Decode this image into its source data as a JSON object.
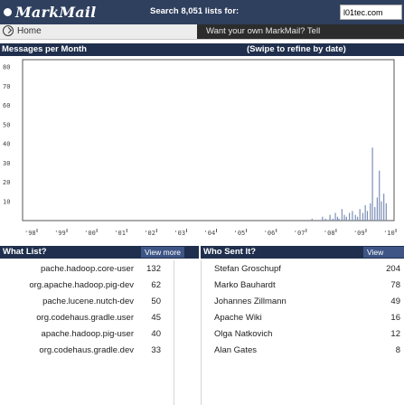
{
  "header": {
    "logo_text": "MarkMail",
    "search_label": "Search 8,051 lists for:",
    "search_value": "l01tec.com"
  },
  "nav": {
    "home_label": "Home",
    "promo_text": "Want your own MarkMail? Tell"
  },
  "messages_section": {
    "title": "Messages per Month",
    "hint": "(Swipe to refine by date)"
  },
  "chart_data": {
    "type": "bar",
    "y_ticks": [
      10,
      20,
      30,
      40,
      50,
      60,
      70,
      80
    ],
    "ylim": [
      0,
      80
    ],
    "x_tick_labels": [
      "'98",
      "'99",
      "'00",
      "'01",
      "'02",
      "'03",
      "'04",
      "'05",
      "'06",
      "'07",
      "'08",
      "'09",
      "'10"
    ],
    "bar_color": "#7b8fb8",
    "x_start": 1998.0,
    "monthly_values": [
      [
        2007.6,
        1
      ],
      [
        2007.95,
        2
      ],
      [
        2008.05,
        1
      ],
      [
        2008.2,
        3
      ],
      [
        2008.3,
        1
      ],
      [
        2008.38,
        4
      ],
      [
        2008.45,
        2
      ],
      [
        2008.5,
        1
      ],
      [
        2008.6,
        6
      ],
      [
        2008.68,
        3
      ],
      [
        2008.75,
        2
      ],
      [
        2008.85,
        4
      ],
      [
        2008.95,
        5
      ],
      [
        2009.05,
        3
      ],
      [
        2009.12,
        2
      ],
      [
        2009.2,
        6
      ],
      [
        2009.3,
        4
      ],
      [
        2009.38,
        8
      ],
      [
        2009.45,
        5
      ],
      [
        2009.55,
        9
      ],
      [
        2009.62,
        38
      ],
      [
        2009.7,
        7
      ],
      [
        2009.78,
        12
      ],
      [
        2009.85,
        26
      ],
      [
        2009.92,
        10
      ],
      [
        2010.0,
        14
      ],
      [
        2010.08,
        9
      ]
    ]
  },
  "whats_list": {
    "title": "What List?",
    "view_more": "View more",
    "items": [
      {
        "name": "pache.hadoop.core-user",
        "count": "132"
      },
      {
        "name": "org.apache.hadoop.pig-dev",
        "count": "62"
      },
      {
        "name": "pache.lucene.nutch-dev",
        "count": "50"
      },
      {
        "name": "org.codehaus.gradle.user",
        "count": "45"
      },
      {
        "name": "apache.hadoop.pig-user",
        "count": "40"
      },
      {
        "name": "org.codehaus.gradle.dev",
        "count": "33"
      }
    ]
  },
  "who_sent": {
    "title": "Who Sent It?",
    "view_more": "View more",
    "items": [
      {
        "name": "Stefan Groschupf",
        "count": "204"
      },
      {
        "name": "Marko Bauhardt",
        "count": "78"
      },
      {
        "name": "Johannes Zillmann",
        "count": "49"
      },
      {
        "name": "Apache Wiki",
        "count": "16"
      },
      {
        "name": "Olga Natkovich",
        "count": "12"
      },
      {
        "name": "Alan Gates",
        "count": "8"
      }
    ]
  },
  "colors": {
    "header_bg": "#2f3f5e",
    "section_bg": "#1f2f4d",
    "view_more_bg": "#3e5586"
  }
}
